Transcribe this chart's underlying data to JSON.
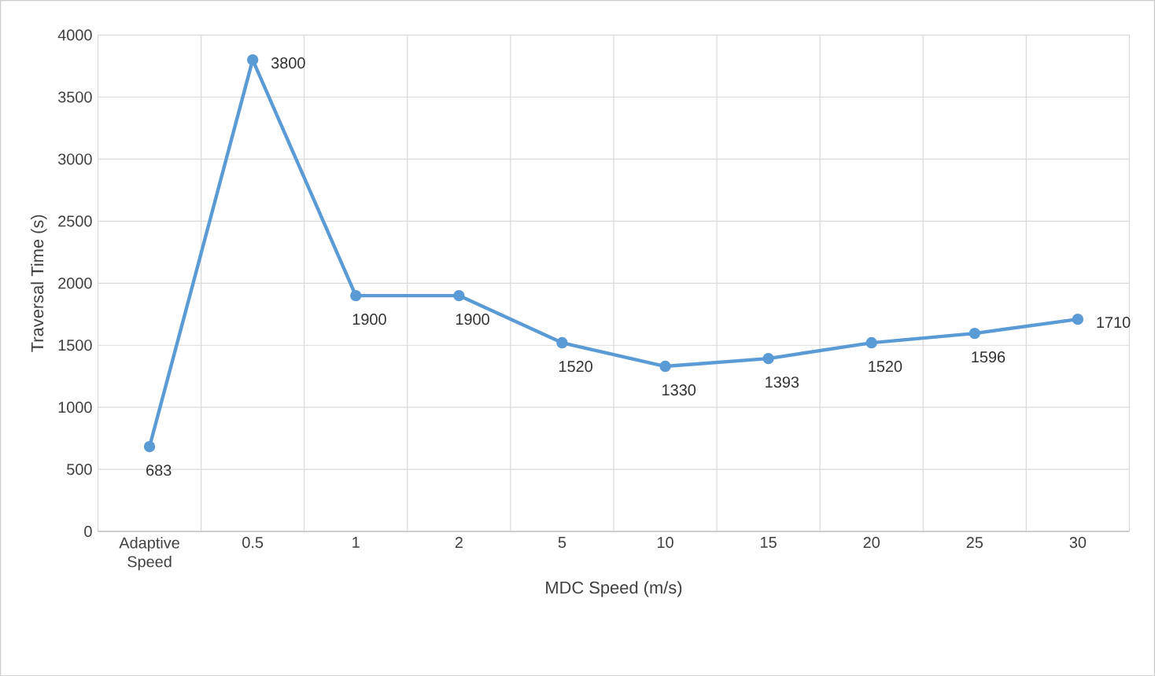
{
  "chart_data": {
    "type": "line",
    "xlabel": "MDC Speed (m/s)",
    "ylabel": "Traversal Time (s)",
    "categories": [
      "Adaptive Speed",
      "0.5",
      "1",
      "2",
      "5",
      "10",
      "15",
      "20",
      "25",
      "30"
    ],
    "series": [
      {
        "color": "#5b9bd5",
        "values": [
          683,
          3800,
          1900,
          1900,
          1520,
          1330,
          1393,
          1520,
          1596,
          1710
        ]
      }
    ],
    "ylim": [
      0,
      4000
    ],
    "yticks": [
      0,
      500,
      1000,
      1500,
      2000,
      2500,
      3000,
      3500,
      4000
    ],
    "grid": true,
    "marker": "circle",
    "line_style": "solid",
    "data_labels": true
  }
}
